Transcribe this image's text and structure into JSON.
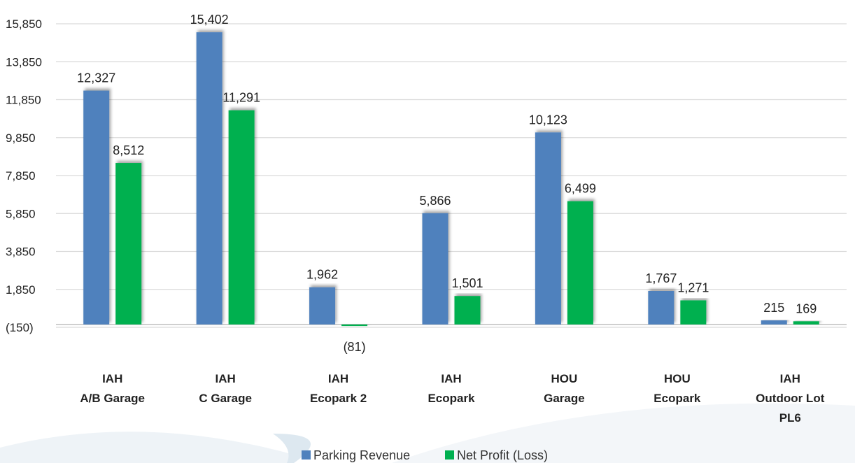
{
  "chart_data": {
    "type": "bar",
    "categories": [
      [
        "IAH",
        "A/B Garage"
      ],
      [
        "IAH",
        "C Garage"
      ],
      [
        "IAH",
        "Ecopark 2"
      ],
      [
        "IAH",
        "Ecopark"
      ],
      [
        "HOU",
        "Garage"
      ],
      [
        "HOU",
        "Ecopark"
      ],
      [
        "IAH",
        "Outdoor Lot",
        "PL6"
      ]
    ],
    "series": [
      {
        "name": "Parking Revenue",
        "color": "#4f81bd",
        "values": [
          12327,
          15402,
          1962,
          5866,
          10123,
          1767,
          215
        ],
        "labels": [
          "12,327",
          "15,402",
          "1,962",
          "5,866",
          "10,123",
          "1,767",
          "215"
        ]
      },
      {
        "name": "Net Profit (Loss)",
        "color": "#00b050",
        "values": [
          8512,
          11291,
          -81,
          1501,
          6499,
          1271,
          169
        ],
        "labels": [
          "8,512",
          "11,291",
          "(81)",
          "1,501",
          "6,499",
          "1,271",
          "169"
        ]
      }
    ],
    "y_ticks": [
      -150,
      1850,
      3850,
      5850,
      7850,
      9850,
      11850,
      13850,
      15850
    ],
    "y_tick_labels": [
      "(150)",
      "1,850",
      "3,850",
      "5,850",
      "7,850",
      "9,850",
      "11,850",
      "13,850",
      "15,850"
    ],
    "ylim": [
      -150,
      15850
    ],
    "grid": true,
    "legend_position": "bottom"
  }
}
